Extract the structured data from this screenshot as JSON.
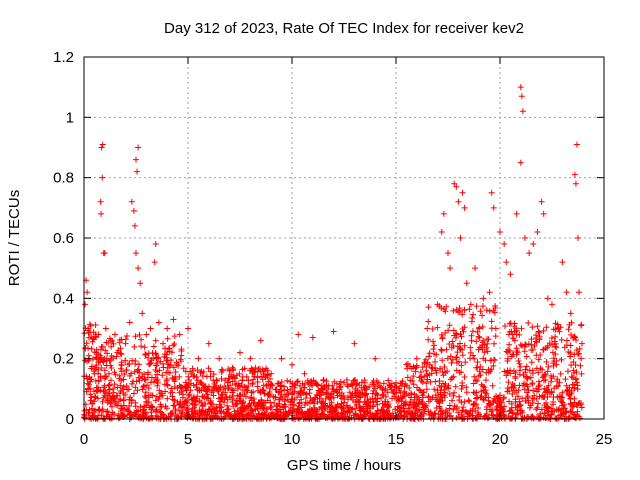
{
  "chart_data": {
    "type": "scatter",
    "title": "Day 312 of 2023, Rate Of TEC Index for receiver kev2",
    "xlabel": "GPS time / hours",
    "ylabel": "ROTI / TECUs",
    "xlim": [
      0,
      25
    ],
    "ylim": [
      0,
      1.2
    ],
    "x_ticks": [
      "0",
      "5",
      "10",
      "15",
      "20",
      "25"
    ],
    "y_ticks": [
      "0",
      "0.2",
      "0.4",
      "0.6",
      "0.8",
      "1",
      "1.2"
    ],
    "x_tick_values": [
      0,
      5,
      10,
      15,
      20,
      25
    ],
    "y_tick_values": [
      0,
      0.2,
      0.4,
      0.6,
      0.8,
      1.0,
      1.2
    ],
    "grid": true,
    "marker": "+",
    "series": [
      {
        "color": "#ff0000",
        "points": [
          [
            0.05,
            0.38
          ],
          [
            0.1,
            0.46
          ],
          [
            0.15,
            0.42
          ],
          [
            0.2,
            0.3
          ],
          [
            0.25,
            0.2
          ],
          [
            0.3,
            0.1
          ],
          [
            0.4,
            0.05
          ],
          [
            0.5,
            0.15
          ],
          [
            0.6,
            0.22
          ],
          [
            0.7,
            0.28
          ],
          [
            0.8,
            0.72
          ],
          [
            0.82,
            0.68
          ],
          [
            0.85,
            0.9
          ],
          [
            0.9,
            0.91
          ],
          [
            0.88,
            0.8
          ],
          [
            0.95,
            0.55
          ],
          [
            1.0,
            0.55
          ],
          [
            1.05,
            0.3
          ],
          [
            1.1,
            0.2
          ],
          [
            1.2,
            0.15
          ],
          [
            1.3,
            0.26
          ],
          [
            1.4,
            0.1
          ],
          [
            1.6,
            0.22
          ],
          [
            1.8,
            0.18
          ],
          [
            2.0,
            0.25
          ],
          [
            2.2,
            0.32
          ],
          [
            2.3,
            0.72
          ],
          [
            2.4,
            0.69
          ],
          [
            2.45,
            0.64
          ],
          [
            2.5,
            0.86
          ],
          [
            2.55,
            0.82
          ],
          [
            2.6,
            0.9
          ],
          [
            2.5,
            0.55
          ],
          [
            2.6,
            0.5
          ],
          [
            2.7,
            0.45
          ],
          [
            2.8,
            0.35
          ],
          [
            3.0,
            0.28
          ],
          [
            3.2,
            0.3
          ],
          [
            3.4,
            0.52
          ],
          [
            3.45,
            0.58
          ],
          [
            3.6,
            0.32
          ],
          [
            3.8,
            0.25
          ],
          [
            4.0,
            0.3
          ],
          [
            4.3,
            0.33
          ],
          [
            4.6,
            0.28
          ],
          [
            5.0,
            0.3
          ],
          [
            5.5,
            0.2
          ],
          [
            6.0,
            0.25
          ],
          [
            6.5,
            0.2
          ],
          [
            7.0,
            0.16
          ],
          [
            7.5,
            0.22
          ],
          [
            8.0,
            0.2
          ],
          [
            8.5,
            0.26
          ],
          [
            9.0,
            0.15
          ],
          [
            9.5,
            0.2
          ],
          [
            10.0,
            0.18
          ],
          [
            10.3,
            0.28
          ],
          [
            10.6,
            0.15
          ],
          [
            11.0,
            0.27
          ],
          [
            11.5,
            0.1
          ],
          [
            12.0,
            0.29
          ],
          [
            12.5,
            0.12
          ],
          [
            13.0,
            0.25
          ],
          [
            13.5,
            0.12
          ],
          [
            14.0,
            0.2
          ],
          [
            14.5,
            0.1
          ],
          [
            15.0,
            0.12
          ],
          [
            15.5,
            0.18
          ],
          [
            16.0,
            0.2
          ],
          [
            16.5,
            0.3
          ],
          [
            17.0,
            0.38
          ],
          [
            17.2,
            0.62
          ],
          [
            17.3,
            0.68
          ],
          [
            17.5,
            0.55
          ],
          [
            17.6,
            0.5
          ],
          [
            17.8,
            0.78
          ],
          [
            17.9,
            0.77
          ],
          [
            18.0,
            0.72
          ],
          [
            18.1,
            0.6
          ],
          [
            18.2,
            0.75
          ],
          [
            18.3,
            0.7
          ],
          [
            18.4,
            0.45
          ],
          [
            18.6,
            0.38
          ],
          [
            18.8,
            0.5
          ],
          [
            19.0,
            0.3
          ],
          [
            19.2,
            0.4
          ],
          [
            19.5,
            0.42
          ],
          [
            19.6,
            0.75
          ],
          [
            19.7,
            0.7
          ],
          [
            19.8,
            0.3
          ],
          [
            20.0,
            0.62
          ],
          [
            20.2,
            0.58
          ],
          [
            20.3,
            0.52
          ],
          [
            20.5,
            0.48
          ],
          [
            20.8,
            0.68
          ],
          [
            21.0,
            1.1
          ],
          [
            21.05,
            1.07
          ],
          [
            21.1,
            1.02
          ],
          [
            21.0,
            0.85
          ],
          [
            21.2,
            0.6
          ],
          [
            21.4,
            0.55
          ],
          [
            21.6,
            0.58
          ],
          [
            21.8,
            0.62
          ],
          [
            22.0,
            0.72
          ],
          [
            22.1,
            0.68
          ],
          [
            22.3,
            0.4
          ],
          [
            22.5,
            0.38
          ],
          [
            22.8,
            0.3
          ],
          [
            23.0,
            0.52
          ],
          [
            23.2,
            0.42
          ],
          [
            23.4,
            0.35
          ],
          [
            23.6,
            0.81
          ],
          [
            23.65,
            0.78
          ],
          [
            23.7,
            0.91
          ],
          [
            23.75,
            0.6
          ],
          [
            23.8,
            0.42
          ],
          [
            23.9,
            0.2
          ]
        ]
      }
    ]
  }
}
